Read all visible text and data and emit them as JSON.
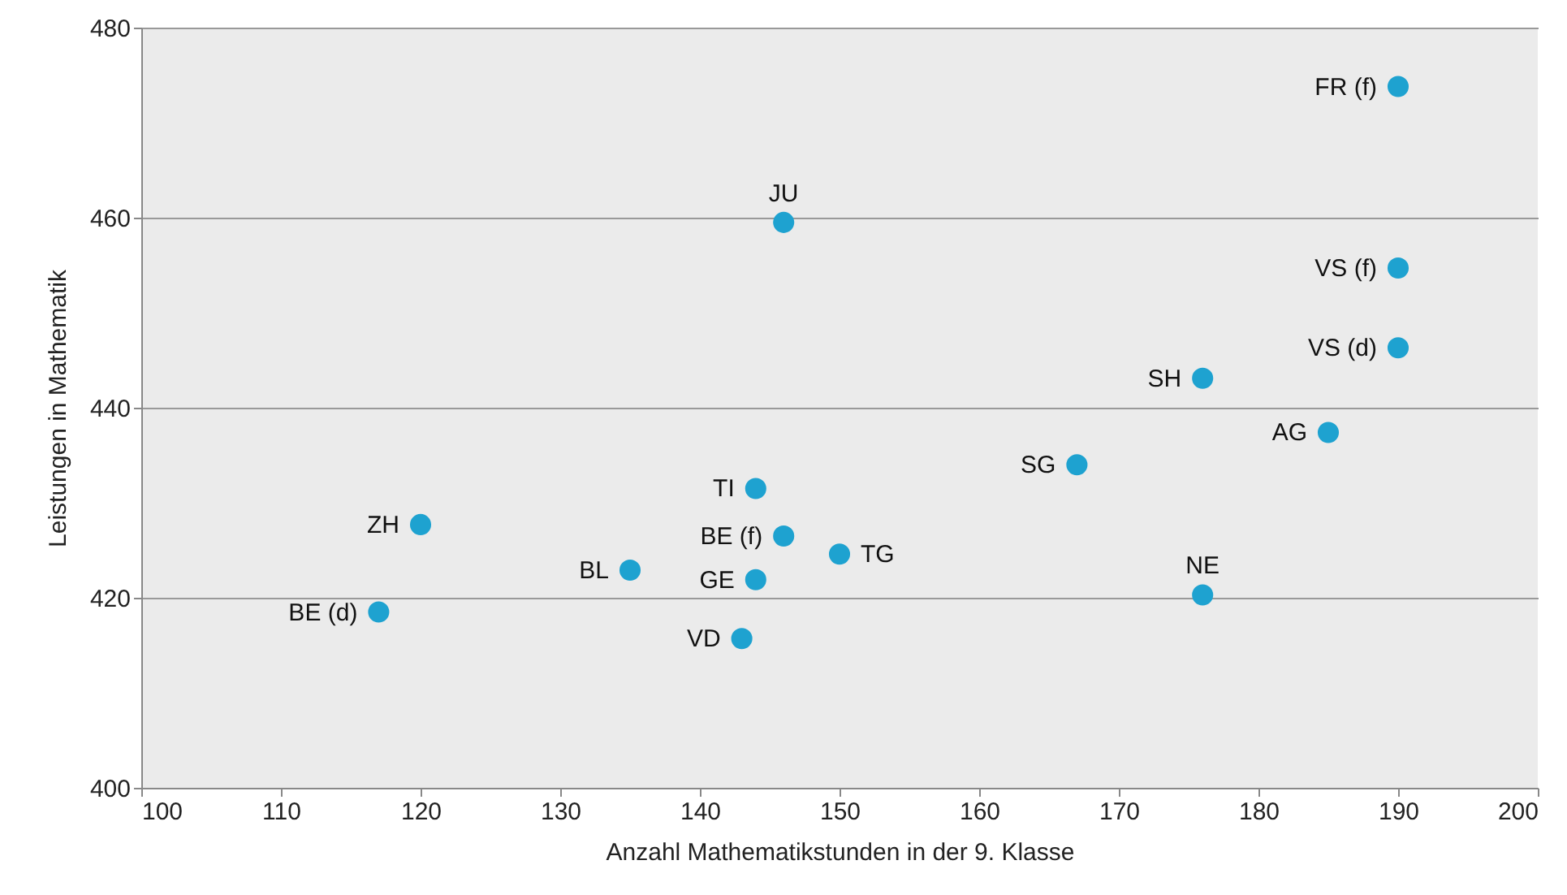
{
  "chart_data": {
    "type": "scatter",
    "xlabel": "Anzahl Mathematikstunden in der 9. Klasse",
    "ylabel": "Leistungen in Mathematik",
    "x": [
      190,
      146,
      190,
      190,
      176,
      185,
      167,
      144,
      120,
      146,
      150,
      135,
      144,
      176,
      117,
      143
    ],
    "series": [
      {
        "color": "#1ea2d0",
        "marker": "circle",
        "values": [
          473.8,
          459.5,
          454.7,
          446.3,
          443.1,
          437.4,
          434,
          431.5,
          427.7,
          426.5,
          424.6,
          422.9,
          421.9,
          420.3,
          418.5,
          415.7
        ],
        "value_labels": [
          "FR (f)",
          "JU",
          "VS (f)",
          "VS (d)",
          "SH",
          "AG",
          "SG",
          "TI",
          "ZH",
          "BE (f)",
          "TG",
          "BL",
          "GE",
          "NE",
          "BE (d)",
          "VD"
        ]
      }
    ],
    "xlim": [
      100,
      200
    ],
    "xticks": [
      100,
      110,
      120,
      130,
      140,
      150,
      160,
      170,
      180,
      190,
      200
    ],
    "ylim": [
      400,
      480
    ],
    "yticks": [
      400,
      420,
      440,
      460,
      480
    ],
    "grid": "y"
  }
}
